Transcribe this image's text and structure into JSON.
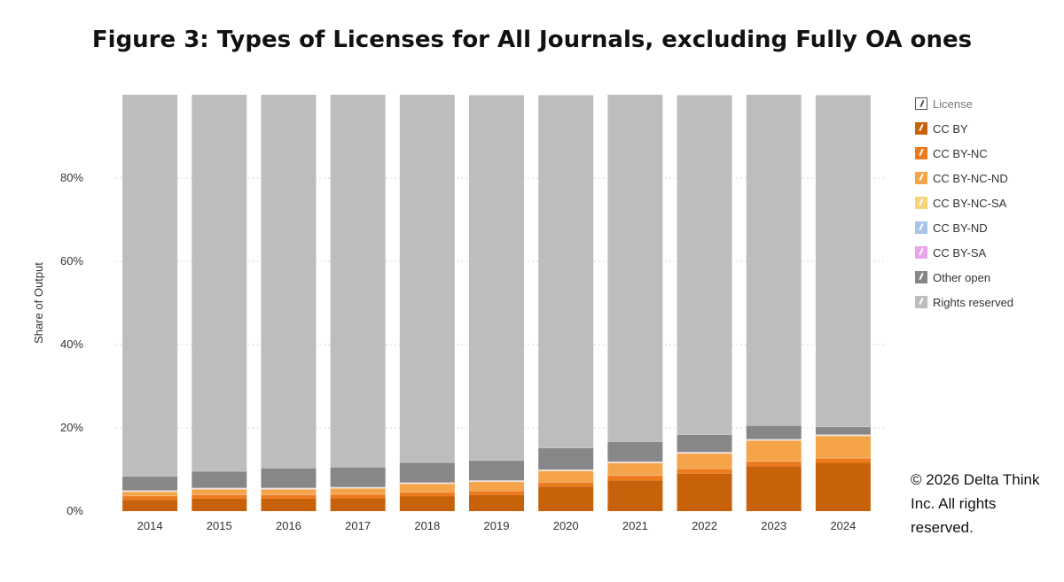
{
  "title": "Figure 3: Types of Licenses for All Journals, excluding Fully OA ones",
  "copyright": "© 2026 Delta Think Inc. All rights reserved.",
  "legend_header": "License",
  "chart_data": {
    "type": "bar",
    "stacked": true,
    "title": "Figure 3: Types of Licenses for All Journals, excluding Fully OA ones",
    "xlabel": "",
    "ylabel": "Share of Output",
    "ylim": [
      0,
      100
    ],
    "y_ticks": [
      "0%",
      "20%",
      "40%",
      "60%",
      "80%"
    ],
    "y_tick_values": [
      0,
      20,
      40,
      60,
      80
    ],
    "grid": true,
    "legend_placement": "right",
    "categories": [
      "2014",
      "2015",
      "2016",
      "2017",
      "2018",
      "2019",
      "2020",
      "2021",
      "2022",
      "2023",
      "2024"
    ],
    "series": [
      {
        "name": "CC BY",
        "color": "#C8620A",
        "values": [
          2.7,
          3.0,
          3.0,
          3.1,
          3.6,
          3.9,
          5.9,
          7.4,
          9.0,
          10.8,
          11.6
        ]
      },
      {
        "name": "CC BY-NC",
        "color": "#EE7A1E",
        "values": [
          1.0,
          1.0,
          1.0,
          1.0,
          1.0,
          1.0,
          1.1,
          1.2,
          1.2,
          1.2,
          1.2
        ]
      },
      {
        "name": "CC BY-NC-ND",
        "color": "#F5A44A",
        "values": [
          1.0,
          1.3,
          1.3,
          1.4,
          2.0,
          2.2,
          2.7,
          3.0,
          3.7,
          5.0,
          5.3
        ]
      },
      {
        "name": "CC BY-NC-SA",
        "color": "#F7D37A",
        "values": [
          0.1,
          0.1,
          0.1,
          0.1,
          0.1,
          0.1,
          0.1,
          0.1,
          0.1,
          0.1,
          0.1
        ]
      },
      {
        "name": "CC BY-ND",
        "color": "#A9C4E8",
        "values": [
          0.1,
          0.1,
          0.1,
          0.1,
          0.1,
          0.1,
          0.1,
          0.1,
          0.1,
          0.1,
          0.1
        ]
      },
      {
        "name": "CC BY-SA",
        "color": "#E8A6E8",
        "values": [
          0.1,
          0.1,
          0.1,
          0.1,
          0.1,
          0.1,
          0.1,
          0.1,
          0.1,
          0.1,
          0.1
        ]
      },
      {
        "name": "Other open",
        "color": "#878787",
        "values": [
          3.4,
          4.0,
          4.8,
          4.8,
          4.8,
          4.8,
          5.2,
          4.8,
          4.2,
          3.3,
          1.9
        ]
      },
      {
        "name": "Rights reserved",
        "color": "#BDBDBD",
        "values": [
          91.6,
          90.4,
          89.6,
          89.4,
          88.3,
          87.7,
          84.7,
          83.3,
          81.5,
          79.4,
          79.6
        ]
      }
    ]
  }
}
